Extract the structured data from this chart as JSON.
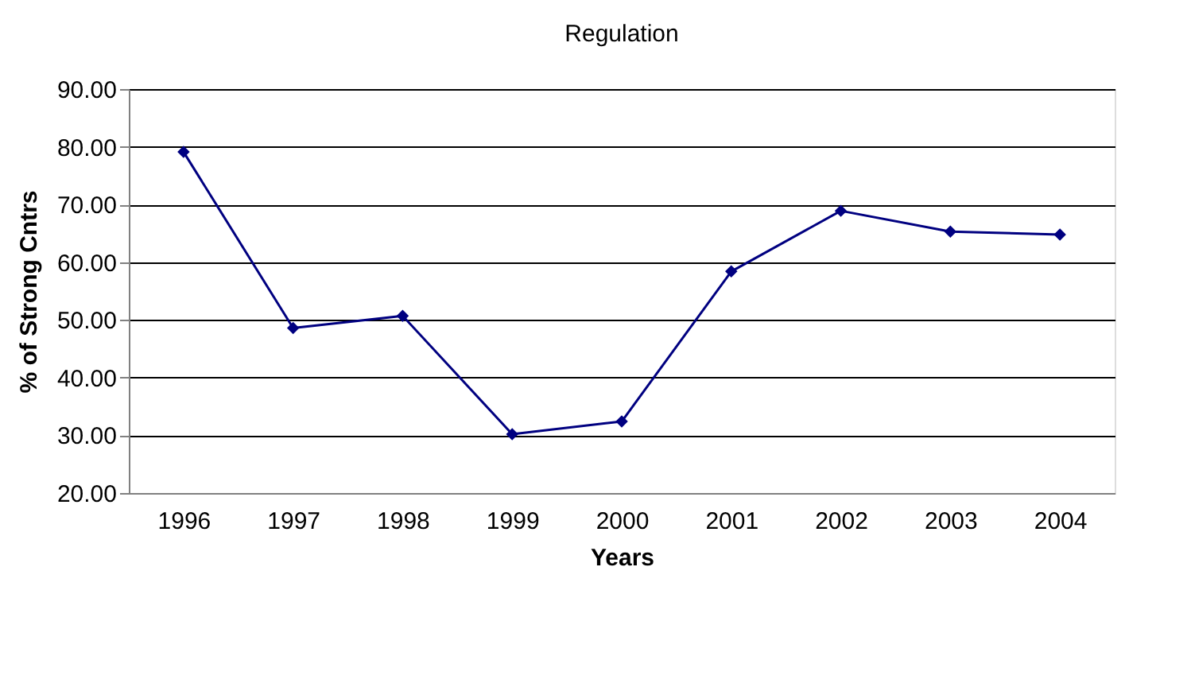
{
  "chart_data": {
    "type": "line",
    "title": "Regulation",
    "xlabel": "Years",
    "ylabel": "% of Strong Cntrs",
    "categories": [
      "1996",
      "1997",
      "1998",
      "1999",
      "2000",
      "2001",
      "2002",
      "2003",
      "2004"
    ],
    "series": [
      {
        "color": "#000080",
        "values": [
          79.1,
          48.6,
          50.7,
          30.2,
          32.4,
          58.4,
          68.9,
          65.3,
          64.8
        ]
      }
    ],
    "ylim": [
      20,
      90
    ],
    "yticks": [
      {
        "value": 20,
        "label": "20.00"
      },
      {
        "value": 30,
        "label": "30.00"
      },
      {
        "value": 40,
        "label": "40.00"
      },
      {
        "value": 50,
        "label": "50.00"
      },
      {
        "value": 60,
        "label": "60.00"
      },
      {
        "value": 70,
        "label": "70.00"
      },
      {
        "value": 80,
        "label": "80.00"
      },
      {
        "value": 90,
        "label": "90.00"
      }
    ],
    "grid": "y",
    "marker": "diamond",
    "line_style": "solid",
    "legend": false
  }
}
